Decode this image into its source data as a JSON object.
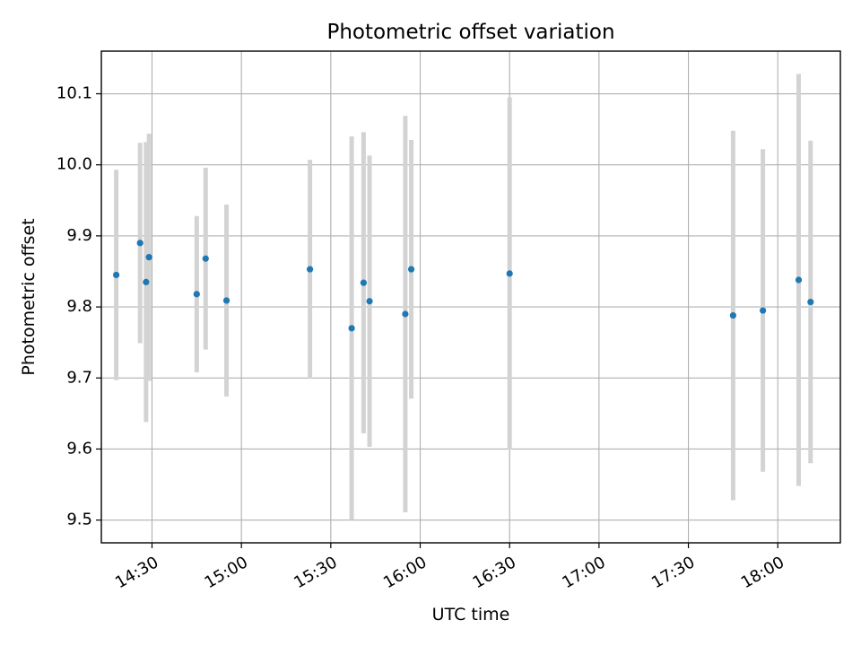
{
  "chart_data": {
    "type": "scatter",
    "title": "Photometric offset variation",
    "xlabel": "UTC time",
    "ylabel": "Photometric offset",
    "grid": true,
    "xlim": [
      "14:13",
      "18:21"
    ],
    "ylim": [
      9.468,
      10.16
    ],
    "x_ticks": [
      "14:30",
      "15:00",
      "15:30",
      "16:00",
      "16:30",
      "17:00",
      "17:30",
      "18:00"
    ],
    "y_ticks": [
      "9.5",
      "9.6",
      "9.7",
      "9.8",
      "9.9",
      "10.0",
      "10.1"
    ],
    "colors": {
      "point": "#1f77b4",
      "errorbar": "#d3d3d3",
      "grid": "#b0b0b0"
    },
    "points": [
      {
        "x": "14:18",
        "y": 9.845,
        "err": 0.148
      },
      {
        "x": "14:26",
        "y": 9.89,
        "err": 0.141
      },
      {
        "x": "14:28",
        "y": 9.835,
        "err": 0.197
      },
      {
        "x": "14:29",
        "y": 9.87,
        "err": 0.174
      },
      {
        "x": "14:45",
        "y": 9.818,
        "err": 0.11
      },
      {
        "x": "14:48",
        "y": 9.868,
        "err": 0.128
      },
      {
        "x": "14:55",
        "y": 9.809,
        "err": 0.135
      },
      {
        "x": "15:23",
        "y": 9.853,
        "err": 0.154
      },
      {
        "x": "15:37",
        "y": 9.77,
        "err": 0.27
      },
      {
        "x": "15:41",
        "y": 9.834,
        "err": 0.212
      },
      {
        "x": "15:43",
        "y": 9.808,
        "err": 0.205
      },
      {
        "x": "15:55",
        "y": 9.79,
        "err": 0.279
      },
      {
        "x": "15:57",
        "y": 9.853,
        "err": 0.182
      },
      {
        "x": "16:30",
        "y": 9.847,
        "err": 0.248
      },
      {
        "x": "17:45",
        "y": 9.788,
        "err": 0.26
      },
      {
        "x": "17:55",
        "y": 9.795,
        "err": 0.227
      },
      {
        "x": "18:07",
        "y": 9.838,
        "err": 0.29
      },
      {
        "x": "18:11",
        "y": 9.807,
        "err": 0.227
      }
    ]
  }
}
